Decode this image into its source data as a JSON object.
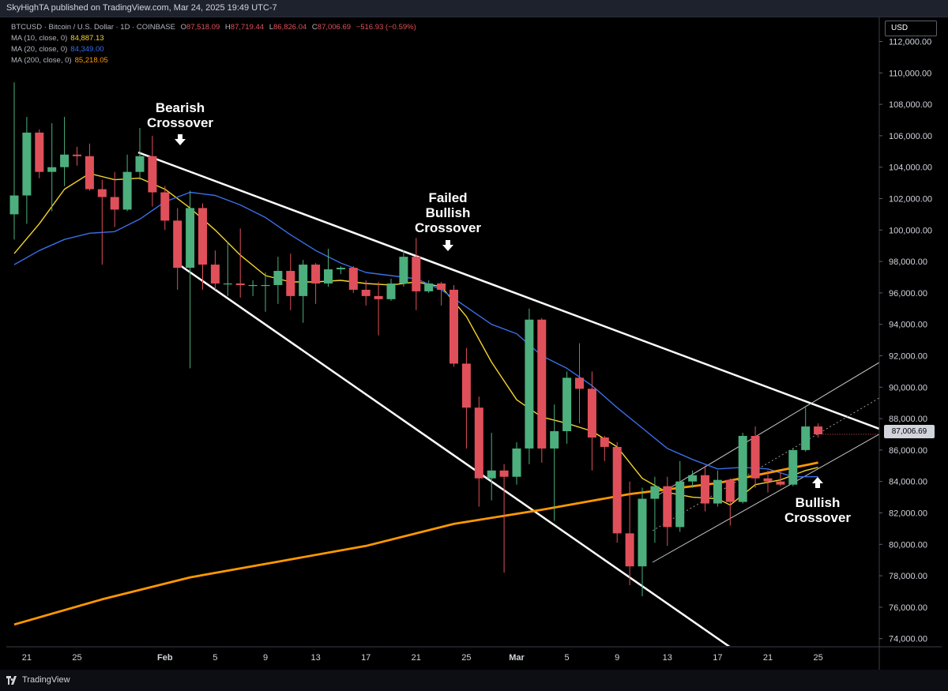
{
  "publisher": "SkyHighTA published on TradingView.com, Mar 24, 2025 19:49 UTC-7",
  "symbol_line": {
    "title": "BTCUSD · Bitcoin / U.S. Dollar · 1D · COINBASE",
    "o_label": "O",
    "o": "87,518.09",
    "h_label": "H",
    "h": "87,719.44",
    "l_label": "L",
    "l": "86,826.04",
    "c_label": "C",
    "c": "87,006.69",
    "change": "−516.93 (−0.59%)"
  },
  "indicators": [
    {
      "label": "MA (10, close, 0)",
      "value": "84,887.13",
      "color": "#f5d42a"
    },
    {
      "label": "MA (20, close, 0)",
      "value": "84,349.00",
      "color": "#3a6ee8"
    },
    {
      "label": "MA (200, close, 0)",
      "value": "85,218.05",
      "color": "#ff9800"
    }
  ],
  "currency_button": "USD",
  "last_price": "87,006.69",
  "price_axis": [
    "112,000.00",
    "110,000.00",
    "108,000.00",
    "106,000.00",
    "104,000.00",
    "102,000.00",
    "100,000.00",
    "98,000.00",
    "96,000.00",
    "94,000.00",
    "92,000.00",
    "90,000.00",
    "88,000.00",
    "86,000.00",
    "84,000.00",
    "82,000.00",
    "80,000.00",
    "78,000.00",
    "76,000.00",
    "74,000.00"
  ],
  "time_axis": [
    "21",
    "25",
    "Feb",
    "5",
    "9",
    "13",
    "17",
    "21",
    "25",
    "Mar",
    "5",
    "9",
    "13",
    "17",
    "21",
    "25"
  ],
  "annotations": {
    "bearish": [
      "Bearish",
      "Crossover"
    ],
    "failed": [
      "Failed",
      "Bullish",
      "Crossover"
    ],
    "bullish": [
      "Bullish",
      "Crossover"
    ]
  },
  "brand": "TradingView",
  "colors": {
    "up": "#4caf7d",
    "down": "#e0505a",
    "ma10": "#f5d42a",
    "ma20": "#3a6ee8",
    "ma200": "#ff9800",
    "background": "#000000"
  },
  "chart_data": {
    "type": "candlestick",
    "ylim": [
      73500,
      112500
    ],
    "candles": [
      {
        "date": "Jan 20",
        "o": 101000,
        "h": 109400,
        "l": 99400,
        "c": 102200
      },
      {
        "date": "Jan 21",
        "o": 102200,
        "h": 107200,
        "l": 100400,
        "c": 106200
      },
      {
        "date": "Jan 22",
        "o": 106200,
        "h": 106400,
        "l": 103300,
        "c": 103700
      },
      {
        "date": "Jan 23",
        "o": 103700,
        "h": 106800,
        "l": 101200,
        "c": 104000
      },
      {
        "date": "Jan 24",
        "o": 104000,
        "h": 107200,
        "l": 102800,
        "c": 104800
      },
      {
        "date": "Jan 25",
        "o": 104800,
        "h": 105300,
        "l": 104100,
        "c": 104700
      },
      {
        "date": "Jan 26",
        "o": 104700,
        "h": 105500,
        "l": 102500,
        "c": 102600
      },
      {
        "date": "Jan 27",
        "o": 102600,
        "h": 103200,
        "l": 97800,
        "c": 102100
      },
      {
        "date": "Jan 28",
        "o": 102100,
        "h": 103700,
        "l": 100200,
        "c": 101300
      },
      {
        "date": "Jan 29",
        "o": 101300,
        "h": 104800,
        "l": 101200,
        "c": 103700
      },
      {
        "date": "Jan 30",
        "o": 103700,
        "h": 106500,
        "l": 103200,
        "c": 104700
      },
      {
        "date": "Jan 31",
        "o": 104700,
        "h": 106000,
        "l": 101500,
        "c": 102400
      },
      {
        "date": "Feb 1",
        "o": 102400,
        "h": 102800,
        "l": 100000,
        "c": 100600
      },
      {
        "date": "Feb 2",
        "o": 100600,
        "h": 101400,
        "l": 96200,
        "c": 97600
      },
      {
        "date": "Feb 3",
        "o": 97600,
        "h": 102500,
        "l": 91200,
        "c": 101400
      },
      {
        "date": "Feb 4",
        "o": 101400,
        "h": 101700,
        "l": 96200,
        "c": 97800
      },
      {
        "date": "Feb 5",
        "o": 97800,
        "h": 98700,
        "l": 96200,
        "c": 96600
      },
      {
        "date": "Feb 6",
        "o": 96600,
        "h": 99200,
        "l": 95800,
        "c": 96600
      },
      {
        "date": "Feb 7",
        "o": 96600,
        "h": 100100,
        "l": 95700,
        "c": 96500
      },
      {
        "date": "Feb 8",
        "o": 96500,
        "h": 96800,
        "l": 95800,
        "c": 96500
      },
      {
        "date": "Feb 9",
        "o": 96500,
        "h": 97300,
        "l": 94800,
        "c": 96500
      },
      {
        "date": "Feb 10",
        "o": 96500,
        "h": 98300,
        "l": 95300,
        "c": 97400
      },
      {
        "date": "Feb 11",
        "o": 97400,
        "h": 98500,
        "l": 94900,
        "c": 95800
      },
      {
        "date": "Feb 12",
        "o": 95800,
        "h": 98100,
        "l": 94100,
        "c": 97800
      },
      {
        "date": "Feb 13",
        "o": 97800,
        "h": 97900,
        "l": 95300,
        "c": 96600
      },
      {
        "date": "Feb 14",
        "o": 96600,
        "h": 98800,
        "l": 96400,
        "c": 97500
      },
      {
        "date": "Feb 15",
        "o": 97500,
        "h": 97700,
        "l": 97200,
        "c": 97600
      },
      {
        "date": "Feb 16",
        "o": 97600,
        "h": 97700,
        "l": 96000,
        "c": 96200
      },
      {
        "date": "Feb 17",
        "o": 96200,
        "h": 96800,
        "l": 95200,
        "c": 95800
      },
      {
        "date": "Feb 18",
        "o": 95800,
        "h": 96700,
        "l": 93300,
        "c": 95600
      },
      {
        "date": "Feb 19",
        "o": 95600,
        "h": 96900,
        "l": 95500,
        "c": 96600
      },
      {
        "date": "Feb 20",
        "o": 96600,
        "h": 98700,
        "l": 96400,
        "c": 98300
      },
      {
        "date": "Feb 21",
        "o": 98300,
        "h": 99500,
        "l": 94900,
        "c": 96100
      },
      {
        "date": "Feb 22",
        "o": 96100,
        "h": 96800,
        "l": 96000,
        "c": 96600
      },
      {
        "date": "Feb 23",
        "o": 96600,
        "h": 96700,
        "l": 95200,
        "c": 96200
      },
      {
        "date": "Feb 24",
        "o": 96200,
        "h": 96500,
        "l": 91300,
        "c": 91500
      },
      {
        "date": "Feb 25",
        "o": 91500,
        "h": 92500,
        "l": 86100,
        "c": 88700
      },
      {
        "date": "Feb 26",
        "o": 88700,
        "h": 89400,
        "l": 82400,
        "c": 84200
      },
      {
        "date": "Feb 27",
        "o": 84200,
        "h": 87100,
        "l": 82800,
        "c": 84700
      },
      {
        "date": "Feb 28",
        "o": 84700,
        "h": 85100,
        "l": 78200,
        "c": 84300
      },
      {
        "date": "Mar 1",
        "o": 84300,
        "h": 86500,
        "l": 83800,
        "c": 86100
      },
      {
        "date": "Mar 2",
        "o": 86100,
        "h": 95000,
        "l": 85100,
        "c": 94300
      },
      {
        "date": "Mar 3",
        "o": 94300,
        "h": 94400,
        "l": 85200,
        "c": 86100
      },
      {
        "date": "Mar 4",
        "o": 86100,
        "h": 88900,
        "l": 81500,
        "c": 87200
      },
      {
        "date": "Mar 5",
        "o": 87200,
        "h": 91000,
        "l": 86400,
        "c": 90600
      },
      {
        "date": "Mar 6",
        "o": 90600,
        "h": 92800,
        "l": 87700,
        "c": 89900
      },
      {
        "date": "Mar 7",
        "o": 89900,
        "h": 91000,
        "l": 84700,
        "c": 86800
      },
      {
        "date": "Mar 8",
        "o": 86800,
        "h": 86900,
        "l": 85300,
        "c": 86200
      },
      {
        "date": "Mar 9",
        "o": 86200,
        "h": 86500,
        "l": 80100,
        "c": 80700
      },
      {
        "date": "Mar 10",
        "o": 80700,
        "h": 84000,
        "l": 77400,
        "c": 78600
      },
      {
        "date": "Mar 11",
        "o": 78600,
        "h": 83600,
        "l": 76700,
        "c": 82900
      },
      {
        "date": "Mar 12",
        "o": 82900,
        "h": 84300,
        "l": 80100,
        "c": 83700
      },
      {
        "date": "Mar 13",
        "o": 83700,
        "h": 84300,
        "l": 79900,
        "c": 81100
      },
      {
        "date": "Mar 14",
        "o": 81100,
        "h": 85300,
        "l": 80800,
        "c": 84000
      },
      {
        "date": "Mar 15",
        "o": 84000,
        "h": 84700,
        "l": 83600,
        "c": 84400
      },
      {
        "date": "Mar 16",
        "o": 84400,
        "h": 85000,
        "l": 82100,
        "c": 82600
      },
      {
        "date": "Mar 17",
        "o": 82600,
        "h": 84700,
        "l": 82400,
        "c": 84100
      },
      {
        "date": "Mar 18",
        "o": 84100,
        "h": 84200,
        "l": 81200,
        "c": 82700
      },
      {
        "date": "Mar 19",
        "o": 82700,
        "h": 87100,
        "l": 82600,
        "c": 86900
      },
      {
        "date": "Mar 20",
        "o": 86900,
        "h": 87500,
        "l": 83600,
        "c": 84200
      },
      {
        "date": "Mar 21",
        "o": 84200,
        "h": 84700,
        "l": 83300,
        "c": 84000
      },
      {
        "date": "Mar 22",
        "o": 84000,
        "h": 84600,
        "l": 83700,
        "c": 83800
      },
      {
        "date": "Mar 23",
        "o": 83800,
        "h": 86100,
        "l": 83700,
        "c": 86000
      },
      {
        "date": "Mar 24",
        "o": 86000,
        "h": 88700,
        "l": 85900,
        "c": 87500
      },
      {
        "date": "Mar 25",
        "o": 87500,
        "h": 87700,
        "l": 86800,
        "c": 87000
      }
    ],
    "moving_averages": [
      {
        "name": "MA (10, close, 0)",
        "color": "#f5d42a",
        "points": [
          [
            "Jan 20",
            98500
          ],
          [
            "Jan 22",
            100400
          ],
          [
            "Jan 24",
            102600
          ],
          [
            "Jan 26",
            103600
          ],
          [
            "Jan 28",
            103200
          ],
          [
            "Jan 30",
            103300
          ],
          [
            "Feb 1",
            102600
          ],
          [
            "Feb 3",
            101400
          ],
          [
            "Feb 5",
            100000
          ],
          [
            "Feb 7",
            98400
          ],
          [
            "Feb 9",
            97100
          ],
          [
            "Feb 11",
            96700
          ],
          [
            "Feb 13",
            96700
          ],
          [
            "Feb 15",
            96800
          ],
          [
            "Feb 17",
            96600
          ],
          [
            "Feb 19",
            96500
          ],
          [
            "Feb 21",
            96700
          ],
          [
            "Feb 23",
            96400
          ],
          [
            "Feb 25",
            94500
          ],
          [
            "Feb 27",
            91600
          ],
          [
            "Mar 1",
            89200
          ],
          [
            "Mar 3",
            88100
          ],
          [
            "Mar 5",
            87700
          ],
          [
            "Mar 7",
            87200
          ],
          [
            "Mar 9",
            86200
          ],
          [
            "Mar 11",
            84200
          ],
          [
            "Mar 13",
            83300
          ],
          [
            "Mar 15",
            83000
          ],
          [
            "Mar 17",
            82900
          ],
          [
            "Mar 18",
            82500
          ],
          [
            "Mar 20",
            83800
          ],
          [
            "Mar 22",
            84100
          ],
          [
            "Mar 24",
            84700
          ],
          [
            "Mar 25",
            84900
          ]
        ]
      },
      {
        "name": "MA (20, close, 0)",
        "color": "#3a6ee8",
        "points": [
          [
            "Jan 20",
            97800
          ],
          [
            "Jan 22",
            98700
          ],
          [
            "Jan 24",
            99400
          ],
          [
            "Jan 26",
            99800
          ],
          [
            "Jan 28",
            99900
          ],
          [
            "Jan 30",
            100700
          ],
          [
            "Feb 1",
            101800
          ],
          [
            "Feb 3",
            102400
          ],
          [
            "Feb 5",
            102200
          ],
          [
            "Feb 7",
            101600
          ],
          [
            "Feb 9",
            100800
          ],
          [
            "Feb 11",
            99700
          ],
          [
            "Feb 13",
            98700
          ],
          [
            "Feb 15",
            97900
          ],
          [
            "Feb 17",
            97300
          ],
          [
            "Feb 19",
            97100
          ],
          [
            "Feb 21",
            96900
          ],
          [
            "Feb 23",
            96200
          ],
          [
            "Feb 25",
            95100
          ],
          [
            "Feb 27",
            94000
          ],
          [
            "Mar 1",
            93400
          ],
          [
            "Mar 3",
            92000
          ],
          [
            "Mar 5",
            91200
          ],
          [
            "Mar 7",
            90100
          ],
          [
            "Mar 9",
            88700
          ],
          [
            "Mar 11",
            87400
          ],
          [
            "Mar 13",
            86100
          ],
          [
            "Mar 15",
            85400
          ],
          [
            "Mar 17",
            84800
          ],
          [
            "Mar 19",
            84900
          ],
          [
            "Mar 21",
            84800
          ],
          [
            "Mar 23",
            84300
          ],
          [
            "Mar 25",
            84300
          ]
        ]
      },
      {
        "name": "MA (200, close, 0)",
        "color": "#ff9800",
        "points": [
          [
            "Jan 20",
            74900
          ],
          [
            "Jan 27",
            76500
          ],
          [
            "Feb 3",
            77900
          ],
          [
            "Feb 10",
            78900
          ],
          [
            "Feb 17",
            79900
          ],
          [
            "Feb 24",
            81300
          ],
          [
            "Mar 3",
            82200
          ],
          [
            "Mar 10",
            83200
          ],
          [
            "Mar 17",
            83900
          ],
          [
            "Mar 25",
            85200
          ]
        ]
      }
    ]
  }
}
